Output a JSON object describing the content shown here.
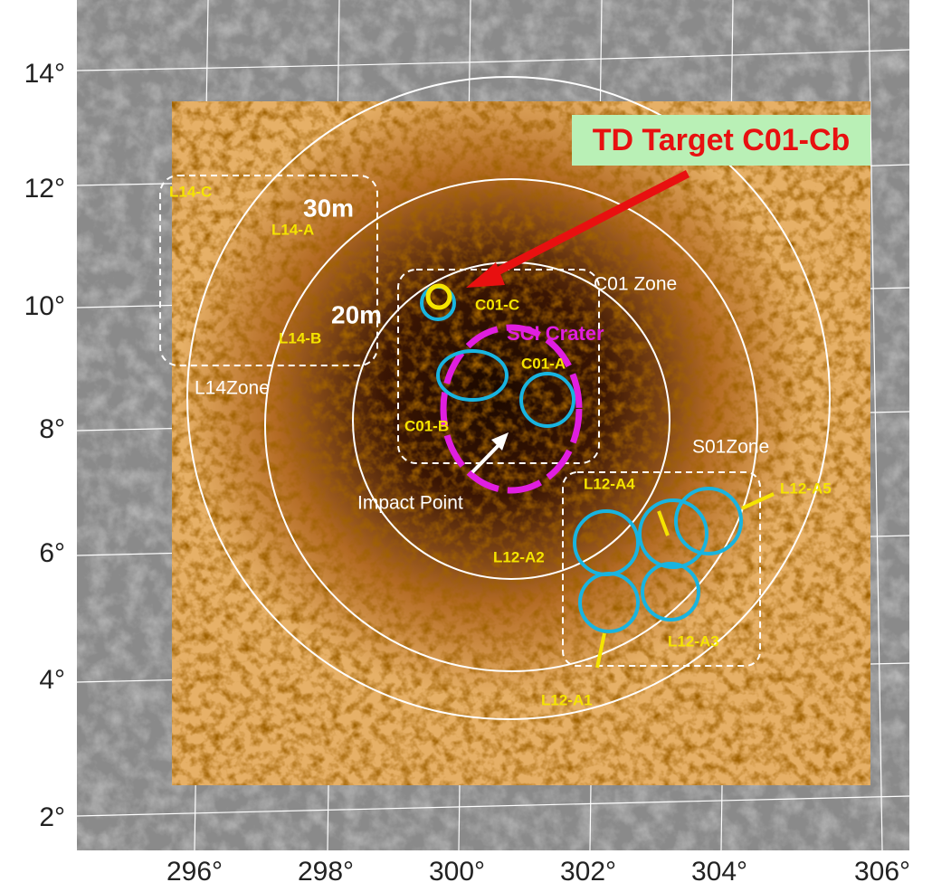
{
  "axes": {
    "latitude_labels": [
      "14°",
      "12°",
      "10°",
      "8°",
      "6°",
      "4°",
      "2°"
    ],
    "longitude_labels": [
      "296°",
      "298°",
      "300°",
      "302°",
      "304°",
      "306°"
    ]
  },
  "target_label": "TD Target C01-Cb",
  "distance_labels": [
    "30m",
    "20m"
  ],
  "zones": [
    "C01 Zone",
    "L14Zone",
    "S01Zone"
  ],
  "impact_label": "Impact Point",
  "crater_label": "SCI Crater",
  "sites": [
    "C01-C",
    "C01-A",
    "C01-B",
    "L14-C",
    "L14-A",
    "L14-B",
    "L12-A4",
    "L12-A5",
    "L12-A2",
    "L12-A3",
    "L12-A1"
  ]
}
